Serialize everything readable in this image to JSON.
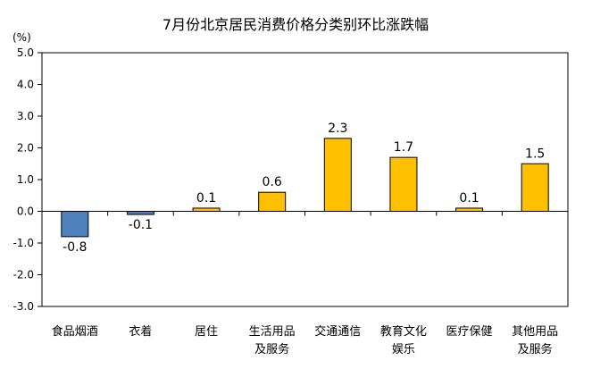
{
  "chart_data": {
    "type": "bar",
    "title": "7月份北京居民消费价格分类别环比涨跌幅",
    "unit_label": "(%)",
    "categories": [
      [
        "食品烟酒"
      ],
      [
        "衣着"
      ],
      [
        "居住"
      ],
      [
        "生活用品",
        "及服务"
      ],
      [
        "交通通信"
      ],
      [
        "教育文化",
        "娱乐"
      ],
      [
        "医疗保健"
      ],
      [
        "其他用品",
        "及服务"
      ]
    ],
    "values": [
      -0.8,
      -0.1,
      0.1,
      0.6,
      2.3,
      1.7,
      0.1,
      1.5
    ],
    "value_labels": [
      "-0.8",
      "-0.1",
      "0.1",
      "0.6",
      "2.3",
      "1.7",
      "0.1",
      "1.5"
    ],
    "ylim": [
      -3.0,
      5.0
    ],
    "yticks": [
      5.0,
      4.0,
      3.0,
      2.0,
      1.0,
      0.0,
      -1.0,
      -2.0,
      -3.0
    ],
    "ytick_labels": [
      "5.0",
      "4.0",
      "3.0",
      "2.0",
      "1.0",
      "0.0",
      "-1.0",
      "-2.0",
      "-3.0"
    ],
    "grid": false,
    "colors": {
      "positive": "#FFC000",
      "negative": "#4F81BD",
      "bar_stroke": "#000000",
      "axis": "#000000"
    }
  }
}
